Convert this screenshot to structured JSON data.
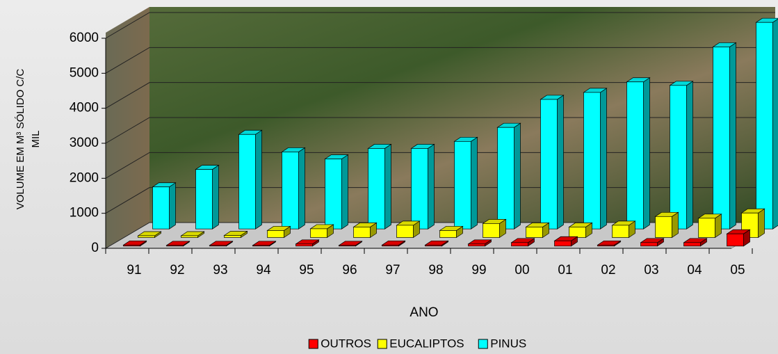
{
  "chart_data": {
    "type": "bar3d",
    "xlabel": "ANO",
    "ylabel_lines": [
      "VOLUME EM M³ SÓLIDO C/C",
      "MIL"
    ],
    "categories": [
      "91",
      "92",
      "93",
      "94",
      "95",
      "96",
      "97",
      "98",
      "99",
      "00",
      "01",
      "02",
      "03",
      "04",
      "05"
    ],
    "series": [
      {
        "name": "OUTROS",
        "color": "#ff0000",
        "values": [
          30,
          20,
          20,
          20,
          60,
          20,
          30,
          30,
          60,
          100,
          150,
          30,
          100,
          100,
          350
        ]
      },
      {
        "name": "EUCALIPTOS",
        "color": "#ffff00",
        "values": [
          50,
          50,
          60,
          200,
          250,
          300,
          350,
          200,
          400,
          300,
          300,
          350,
          600,
          550,
          700
        ]
      },
      {
        "name": "PINUS",
        "color": "#00ffff",
        "values": [
          1200,
          1700,
          2700,
          2200,
          2000,
          2300,
          2300,
          2500,
          2900,
          3700,
          3900,
          4200,
          4100,
          5200,
          5900
        ]
      }
    ],
    "ylim": [
      0,
      6000
    ],
    "yticks": [
      0,
      1000,
      2000,
      3000,
      4000,
      5000,
      6000
    ],
    "grid": true,
    "legend": "bottom"
  }
}
